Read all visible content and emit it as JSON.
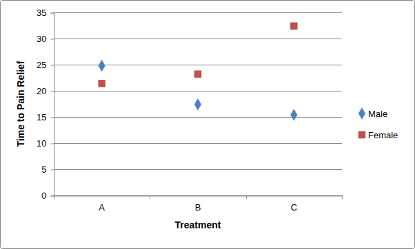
{
  "chart_data": {
    "type": "scatter",
    "x_label": "Treatment",
    "y_label": "Time to Pain Relief",
    "categories": [
      "A",
      "B",
      "C"
    ],
    "series": [
      {
        "name": "Male",
        "color": "#4f81bd",
        "marker": "diamond",
        "values": [
          24.8,
          17.4,
          15.4
        ]
      },
      {
        "name": "Female",
        "color": "#c0504d",
        "marker": "square",
        "values": [
          21.4,
          23.2,
          32.4
        ]
      }
    ],
    "ylim": [
      0,
      35
    ],
    "yticks": [
      0,
      5,
      10,
      15,
      20,
      25,
      30,
      35
    ],
    "grid": true,
    "legend": "right"
  }
}
